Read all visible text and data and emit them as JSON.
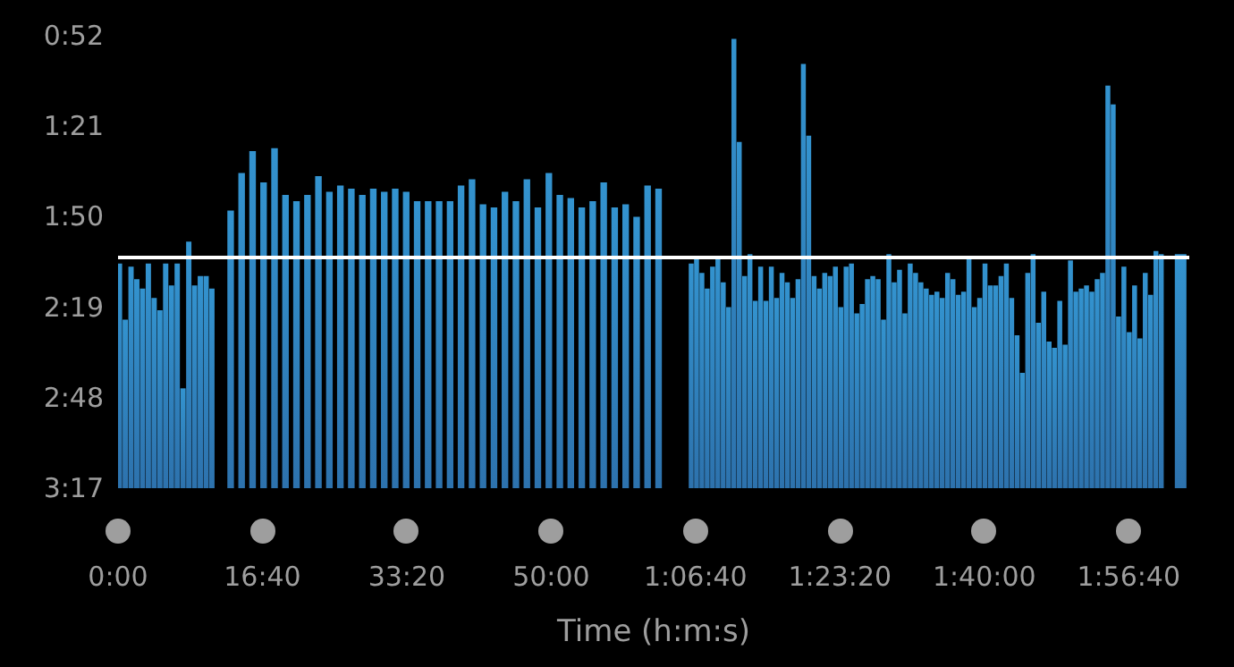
{
  "chart_data": {
    "type": "bar",
    "xlabel": "Time (h:m:s)",
    "color": "#3393cf",
    "x": [
      10,
      50,
      90,
      130,
      170,
      210,
      250,
      290,
      330,
      370,
      410,
      450,
      490,
      530,
      570,
      610,
      650,
      780,
      856,
      932,
      1008,
      1084,
      1160,
      1236,
      1312,
      1388,
      1464,
      1540,
      1616,
      1692,
      1768,
      1844,
      1920,
      1996,
      2072,
      2148,
      2224,
      2300,
      2376,
      2452,
      2528,
      2604,
      2680,
      2756,
      2832,
      2908,
      2984,
      3060,
      3136,
      3212,
      3288,
      3364,
      3440,
      3516,
      3592,
      3668,
      3744,
      3970,
      4007,
      4044,
      4081,
      4118,
      4155,
      4192,
      4229,
      4266,
      4303,
      4340,
      4377,
      4414,
      4451,
      4488,
      4525,
      4562,
      4599,
      4636,
      4673,
      4710,
      4747,
      4784,
      4821,
      4858,
      4895,
      4932,
      4969,
      5006,
      5043,
      5080,
      5117,
      5154,
      5191,
      5228,
      5265,
      5302,
      5339,
      5376,
      5413,
      5450,
      5487,
      5524,
      5561,
      5598,
      5635,
      5672,
      5709,
      5746,
      5783,
      5820,
      5857,
      5894,
      5931,
      5968,
      6005,
      6042,
      6079,
      6116,
      6153,
      6190,
      6227,
      6264,
      6301,
      6338,
      6375,
      6412,
      6449,
      6486,
      6523,
      6560,
      6597,
      6634,
      6671,
      6708,
      6745,
      6782,
      6819,
      6856,
      6893,
      6930,
      6967,
      7004,
      7041,
      7078,
      7115,
      7152,
      7189,
      7226,
      7360
    ],
    "values": [
      -72,
      -54,
      -71,
      -67,
      -64,
      -72,
      -61,
      -57,
      -72,
      -65,
      -72,
      -32,
      -79,
      -65,
      -68,
      -68,
      -64,
      -89,
      -101,
      -108,
      -98,
      -109,
      -94,
      -92,
      -94,
      -100,
      -95,
      -97,
      -96,
      -94,
      -96,
      -95,
      -96,
      -95,
      -92,
      -92,
      -92,
      -92,
      -97,
      -99,
      -91,
      -90,
      -95,
      -92,
      -99,
      -90,
      -101,
      -94,
      -93,
      -90,
      -92,
      -98,
      -90,
      -91,
      -87,
      -97,
      -96,
      -72,
      -74,
      -69,
      -64,
      -71,
      -74,
      -66,
      -58,
      -144,
      -111,
      -68,
      -75,
      -60,
      -71,
      -60,
      -71,
      -61,
      -69,
      -66,
      -61,
      -67,
      -136,
      -113,
      -68,
      -64,
      -69,
      -68,
      -71,
      -58,
      -71,
      -72,
      -56,
      -59,
      -67,
      -68,
      -67,
      -54,
      -75,
      -66,
      -70,
      -56,
      -72,
      -69,
      -66,
      -64,
      -62,
      -63,
      -61,
      -69,
      -67,
      -62,
      -63,
      -74,
      -58,
      -61,
      -72,
      -65,
      -65,
      -68,
      -72,
      -61,
      -49,
      -37,
      -69,
      -75,
      -53,
      -63,
      -47,
      -45,
      -60,
      -46,
      -73,
      -63,
      -64,
      -65,
      -63,
      -67,
      -69,
      -129,
      -123,
      -55,
      -71,
      -50,
      -65,
      -48,
      -69,
      -62,
      -76,
      -75,
      -75
    ],
    "base": [
      197,
      197,
      197,
      197,
      197,
      197,
      197,
      197,
      197,
      197,
      197,
      197,
      197,
      197,
      197,
      197,
      197,
      197,
      197,
      197,
      197,
      197,
      197,
      197,
      197,
      197,
      197,
      197,
      197,
      197,
      197,
      197,
      197,
      197,
      197,
      197,
      197,
      197,
      197,
      197,
      197,
      197,
      197,
      197,
      197,
      197,
      197,
      197,
      197,
      197,
      197,
      197,
      197,
      197,
      197,
      197,
      197,
      197,
      197,
      197,
      197,
      197,
      197,
      197,
      197,
      197,
      197,
      197,
      197,
      197,
      197,
      197,
      197,
      197,
      197,
      197,
      197,
      197,
      197,
      197,
      197,
      197,
      197,
      197,
      197,
      197,
      197,
      197,
      197,
      197,
      197,
      197,
      197,
      197,
      197,
      197,
      197,
      197,
      197,
      197,
      197,
      197,
      197,
      197,
      197,
      197,
      197,
      197,
      197,
      197,
      197,
      197,
      197,
      197,
      197,
      197,
      197,
      197,
      197,
      197,
      197,
      197,
      197,
      197,
      197,
      197,
      197,
      197,
      197,
      197,
      197,
      197,
      197,
      197,
      197,
      197,
      197,
      197,
      197,
      197,
      197,
      197,
      197,
      197,
      197,
      197,
      197
    ],
    "xlim": [
      0,
      7420
    ],
    "xticks": [
      {
        "value": 0,
        "label": "0:00"
      },
      {
        "value": 1000,
        "label": "16:40"
      },
      {
        "value": 2000,
        "label": "33:20"
      },
      {
        "value": 3000,
        "label": "50:00"
      },
      {
        "value": 4000,
        "label": "1:06:40"
      },
      {
        "value": 5000,
        "label": "1:23:20"
      },
      {
        "value": 6000,
        "label": "1:40:00"
      },
      {
        "value": 7000,
        "label": "1:56:40"
      }
    ],
    "ylim": [
      197,
      52
    ],
    "yticks": [
      {
        "value": 52,
        "label": "0:52"
      },
      {
        "value": 81,
        "label": "1:21"
      },
      {
        "value": 110,
        "label": "1:50"
      },
      {
        "value": 139,
        "label": "2:19"
      },
      {
        "value": 168,
        "label": "2:48"
      },
      {
        "value": 197,
        "label": "3:17"
      }
    ],
    "ref_lines": [
      {
        "axis": "y",
        "value": 123,
        "color": "#ffffff"
      }
    ]
  }
}
